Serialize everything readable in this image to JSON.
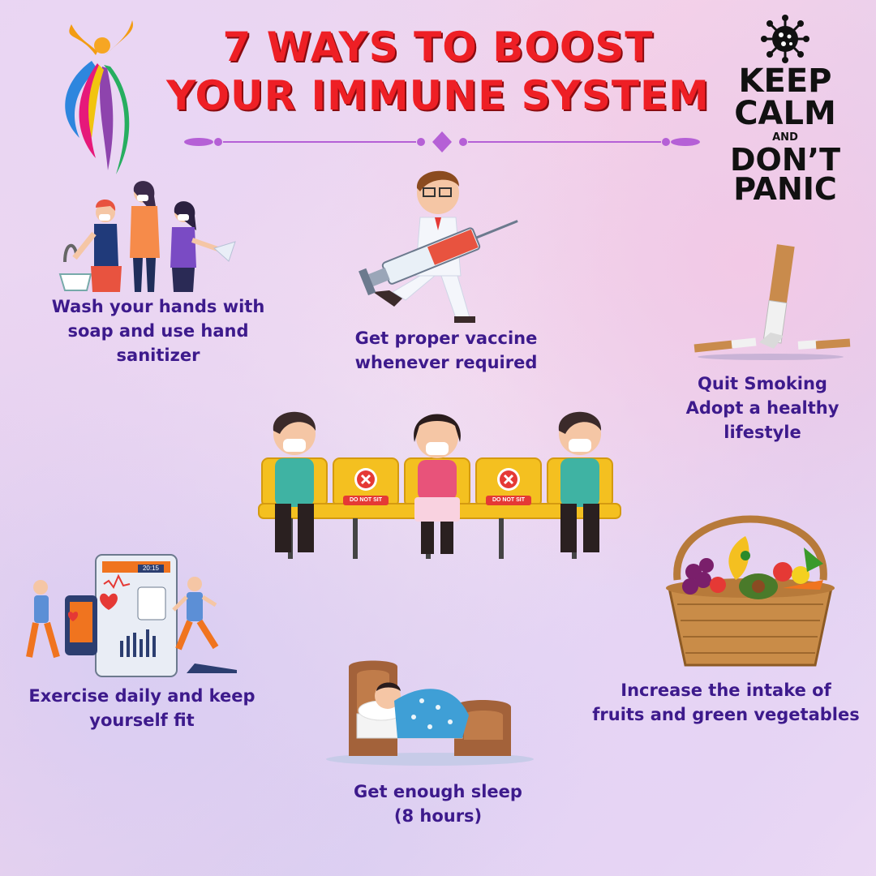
{
  "title": {
    "line1": "7 WAYS TO BOOST",
    "line2": "YOUR IMMUNE SYSTEM"
  },
  "badge": {
    "keep": "KEEP",
    "calm": "CALM",
    "and": "AND",
    "dont": "DON’T",
    "panic": "PANIC"
  },
  "ways": [
    {
      "line1": "Wash your hands with",
      "line2": "soap and use hand",
      "line3": "sanitizer"
    },
    {
      "line1": "Get proper vaccine",
      "line2": "whenever required"
    },
    {
      "line1": "Quit Smoking",
      "line2": "Adopt a healthy",
      "line3": "lifestyle"
    },
    {
      "line1": "Exercise daily and keep",
      "line2": "yourself fit"
    },
    {
      "line1": "Get enough sleep",
      "line2": "(8 hours)"
    },
    {
      "line1": "Increase the intake of",
      "line2": "fruits and green vegetables"
    }
  ],
  "chairs": {
    "sign": "DO NOT SIT"
  },
  "device": {
    "time": "20:15"
  },
  "colors": {
    "title": "#ee1f25",
    "caption": "#3d1a8c",
    "divider": "#b560d6"
  }
}
